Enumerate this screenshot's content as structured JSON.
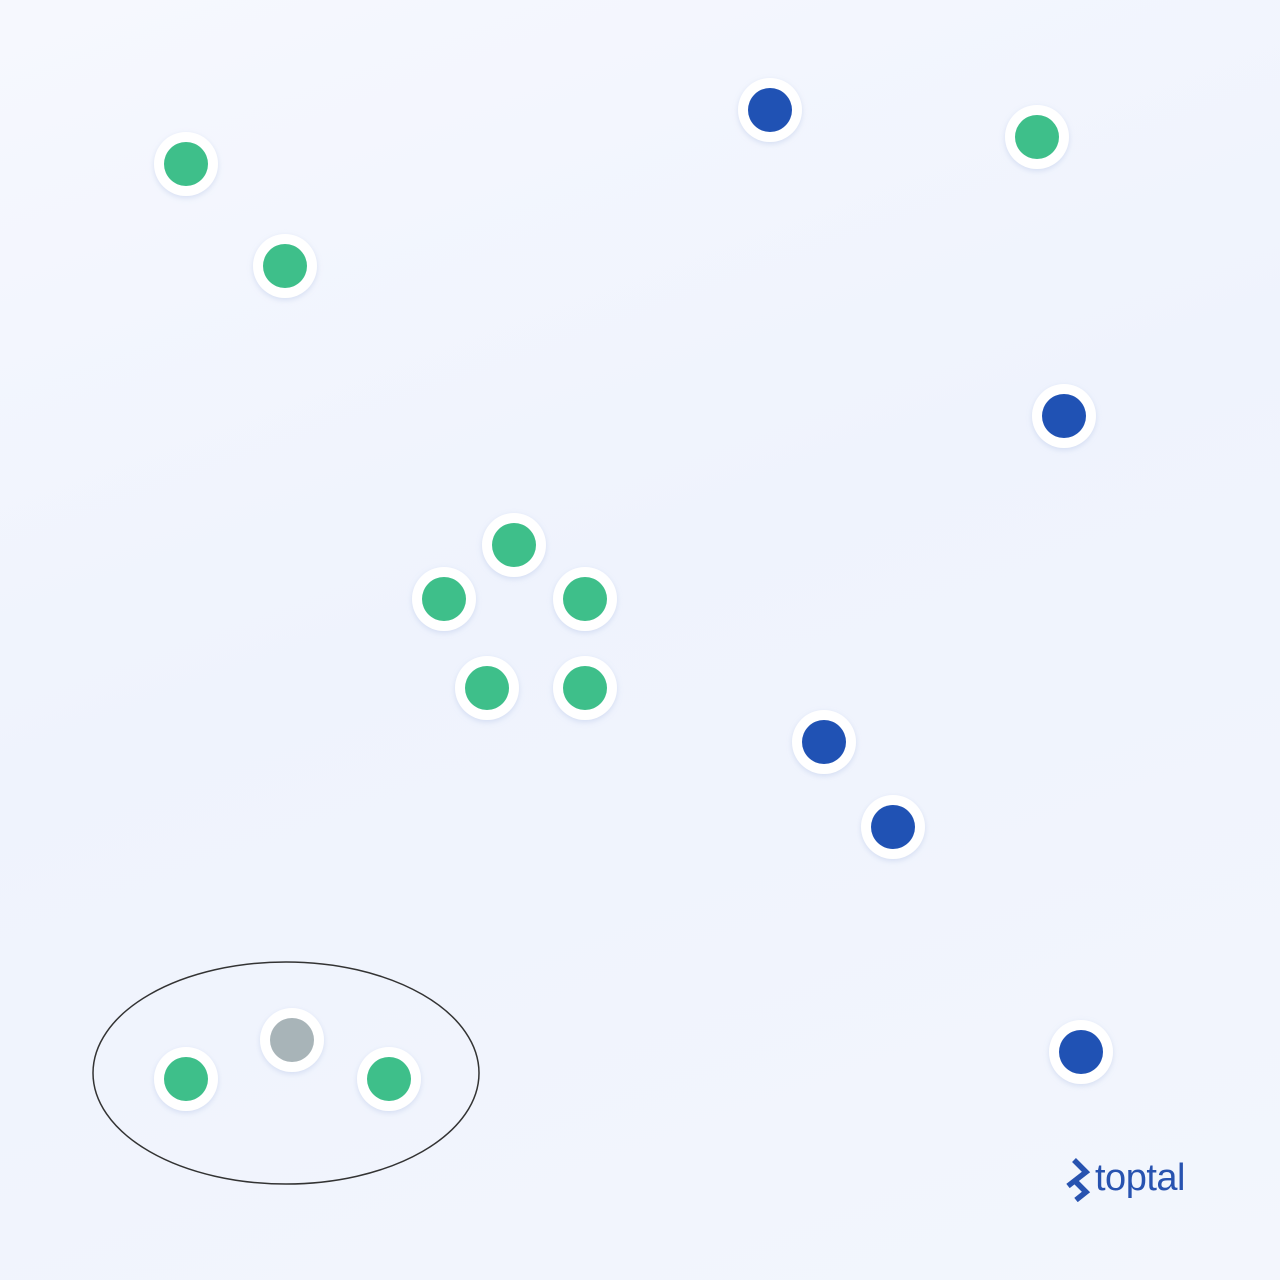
{
  "colors": {
    "green": "#3ebf8a",
    "blue": "#2052b4",
    "gray": "#a8b4b8",
    "halo": "#ffffff",
    "outline": "#333333",
    "brand": "#2853b0"
  },
  "nodes": [
    {
      "id": "n1",
      "class": "green"
    },
    {
      "id": "n2",
      "class": "green"
    },
    {
      "id": "n3",
      "class": "blue"
    },
    {
      "id": "n4",
      "class": "green"
    },
    {
      "id": "n5",
      "class": "blue"
    },
    {
      "id": "n6",
      "class": "green"
    },
    {
      "id": "n7",
      "class": "green"
    },
    {
      "id": "n8",
      "class": "green"
    },
    {
      "id": "n9",
      "class": "green"
    },
    {
      "id": "n10",
      "class": "green"
    },
    {
      "id": "n11",
      "class": "blue"
    },
    {
      "id": "n12",
      "class": "blue"
    },
    {
      "id": "n13",
      "class": "gray"
    },
    {
      "id": "n14",
      "class": "green"
    },
    {
      "id": "n15",
      "class": "green"
    },
    {
      "id": "n16",
      "class": "blue"
    }
  ],
  "logo": {
    "icon": "toptal-logo-icon",
    "text": "toptal"
  }
}
